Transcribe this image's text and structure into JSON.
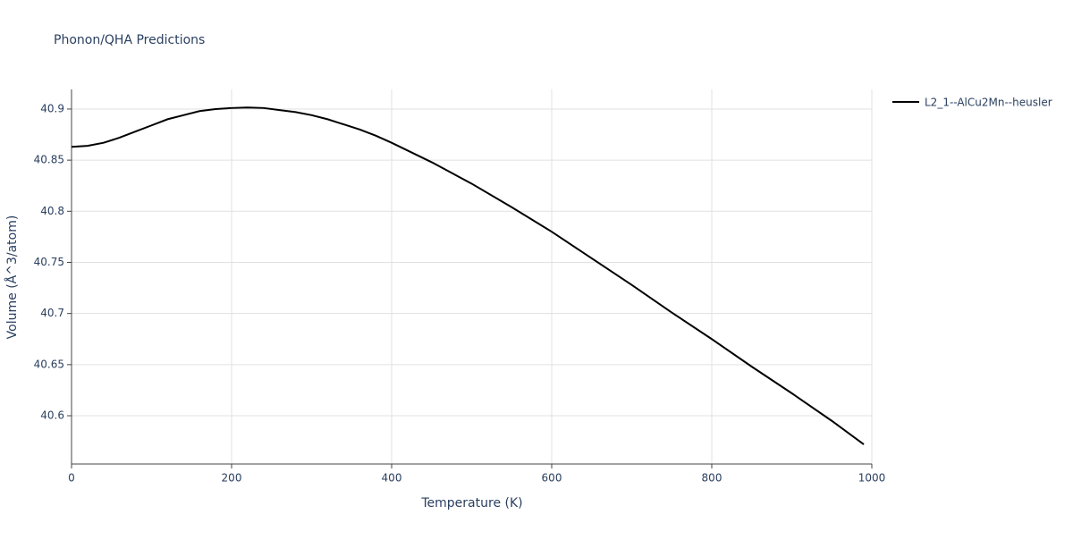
{
  "chart_data": {
    "type": "line",
    "title": "Phonon/QHA Predictions",
    "x_label": "Temperature (K)",
    "y_label": "Volume (Å^3/atom)",
    "x": [
      0,
      20,
      40,
      60,
      80,
      100,
      120,
      140,
      160,
      180,
      200,
      220,
      240,
      260,
      280,
      300,
      320,
      340,
      360,
      380,
      400,
      450,
      500,
      550,
      600,
      650,
      700,
      750,
      800,
      850,
      900,
      950,
      990
    ],
    "series": [
      {
        "name": "L2_1--AlCu2Mn--heusler",
        "color": "#000000",
        "values": [
          40.863,
          40.864,
          40.867,
          40.872,
          40.878,
          40.884,
          40.89,
          40.894,
          40.898,
          40.9,
          40.901,
          40.9015,
          40.901,
          40.899,
          40.897,
          40.894,
          40.89,
          40.885,
          40.88,
          40.874,
          40.867,
          40.848,
          40.827,
          40.804,
          40.78,
          40.754,
          40.728,
          40.701,
          40.675,
          40.648,
          40.622,
          40.595,
          40.572
        ]
      }
    ],
    "xlim": [
      0,
      1000
    ],
    "xticks": [
      0,
      200,
      400,
      600,
      800,
      1000
    ],
    "ylim": [
      40.5528,
      40.9192
    ],
    "yticks": [
      40.6,
      40.65,
      40.7,
      40.75,
      40.8,
      40.85,
      40.9
    ],
    "grid": true,
    "legend": "right"
  }
}
